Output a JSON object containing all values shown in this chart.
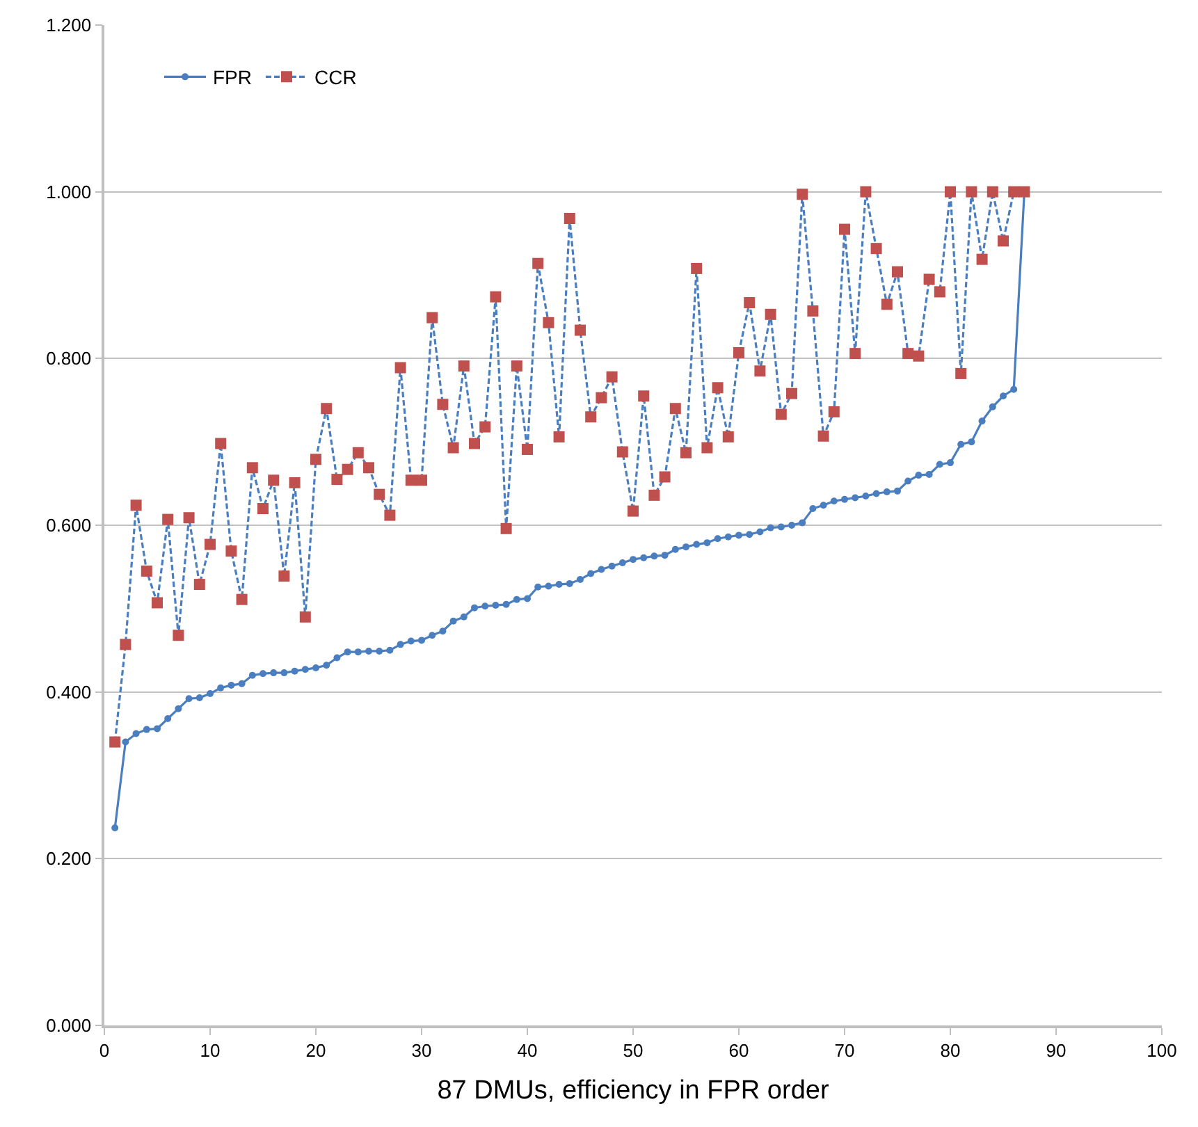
{
  "chart_data": {
    "type": "line",
    "xlabel": "87 DMUs, efficiency in FPR order",
    "x": [
      1,
      2,
      3,
      4,
      5,
      6,
      7,
      8,
      9,
      10,
      11,
      12,
      13,
      14,
      15,
      16,
      17,
      18,
      19,
      20,
      21,
      22,
      23,
      24,
      25,
      26,
      27,
      28,
      29,
      30,
      31,
      32,
      33,
      34,
      35,
      36,
      37,
      38,
      39,
      40,
      41,
      42,
      43,
      44,
      45,
      46,
      47,
      48,
      49,
      50,
      51,
      52,
      53,
      54,
      55,
      56,
      57,
      58,
      59,
      60,
      61,
      62,
      63,
      64,
      65,
      66,
      67,
      68,
      69,
      70,
      71,
      72,
      73,
      74,
      75,
      76,
      77,
      78,
      79,
      80,
      81,
      82,
      83,
      84,
      85,
      86,
      87
    ],
    "series": [
      {
        "name": "FPR",
        "color": "#4a7ebf",
        "marker": "circle",
        "line_style": "solid",
        "values": [
          0.237,
          0.34,
          0.35,
          0.355,
          0.356,
          0.368,
          0.38,
          0.392,
          0.393,
          0.398,
          0.405,
          0.408,
          0.41,
          0.42,
          0.422,
          0.423,
          0.423,
          0.425,
          0.427,
          0.429,
          0.432,
          0.441,
          0.448,
          0.448,
          0.449,
          0.449,
          0.45,
          0.457,
          0.461,
          0.462,
          0.468,
          0.473,
          0.485,
          0.49,
          0.501,
          0.503,
          0.504,
          0.505,
          0.511,
          0.512,
          0.526,
          0.527,
          0.529,
          0.53,
          0.535,
          0.542,
          0.547,
          0.551,
          0.555,
          0.559,
          0.561,
          0.563,
          0.564,
          0.571,
          0.574,
          0.577,
          0.579,
          0.584,
          0.586,
          0.588,
          0.589,
          0.592,
          0.597,
          0.598,
          0.6,
          0.603,
          0.62,
          0.624,
          0.629,
          0.631,
          0.633,
          0.635,
          0.638,
          0.64,
          0.641,
          0.653,
          0.66,
          0.661,
          0.673,
          0.675,
          0.697,
          0.7,
          0.725,
          0.742,
          0.755,
          0.763,
          1.0
        ]
      },
      {
        "name": "CCR",
        "color": "#4a7ebf",
        "colors": [
          "#c0504d",
          "#c0504d",
          "#c0504d",
          "#c0504d",
          "#c0504d",
          "#c0504d",
          "#c0504d",
          "#c0504d",
          "#c0504d",
          "#c0504d",
          "#c0504d",
          "#c0504d",
          "#c0504d",
          "#c0504d",
          "#c0504d",
          "#c0504d",
          "#c0504d",
          "#c0504d",
          "#c0504d",
          "#c0504d",
          "#c0504d",
          "#c0504d",
          "#c0504d",
          "#c0504d",
          "#c0504d",
          "#c0504d",
          "#c0504d",
          "#c0504d",
          "#c0504d",
          "#c0504d",
          "#c0504d",
          "#c0504d",
          "#c0504d",
          "#c0504d",
          "#c0504d",
          "#c0504d",
          "#c0504d",
          "#c0504d",
          "#c0504d",
          "#c0504d",
          "#c0504d",
          "#c0504d",
          "#c0504d",
          "#c0504d",
          "#c0504d",
          "#c0504d",
          "#c0504d",
          "#c0504d",
          "#c0504d",
          "#c0504d",
          "#c0504d",
          "#c0504d",
          "#c0504d",
          "#c0504d",
          "#c0504d",
          "#c0504d",
          "#c0504d",
          "#c0504d",
          "#c0504d",
          "#c0504d",
          "#c0504d",
          "#c0504d",
          "#c0504d",
          "#c0504d",
          "#c0504d",
          "#c0504d",
          "#c0504d",
          "#c0504d",
          "#c0504d",
          "#c0504d",
          "#c0504d",
          "#c0504d",
          "#c0504d",
          "#c0504d",
          "#c0504d",
          "#c0504d",
          "#c0504d",
          "#c0504d",
          "#c0504d",
          "#c0504d",
          "#c0504d",
          "#c0504d",
          "#c0504d",
          "#c0504d",
          "#c0504d",
          "#c0504d",
          "#c0504d"
        ],
        "marker": "square",
        "line_style": "dashed",
        "values": [
          0.34,
          0.457,
          0.624,
          0.545,
          0.507,
          0.607,
          0.468,
          0.609,
          0.529,
          0.577,
          0.698,
          0.569,
          0.511,
          0.669,
          0.62,
          0.654,
          0.539,
          0.651,
          0.49,
          0.679,
          0.74,
          0.655,
          0.667,
          0.687,
          0.669,
          0.637,
          0.612,
          0.789,
          0.654,
          0.654,
          0.849,
          0.745,
          0.693,
          0.791,
          0.698,
          0.718,
          0.874,
          0.596,
          0.791,
          0.691,
          0.914,
          0.843,
          0.706,
          0.968,
          0.834,
          0.73,
          0.753,
          0.778,
          0.688,
          0.617,
          0.755,
          0.636,
          0.658,
          0.74,
          0.687,
          0.908,
          0.693,
          0.765,
          0.706,
          0.807,
          0.867,
          0.785,
          0.853,
          0.733,
          0.758,
          0.997,
          0.857,
          0.707,
          0.736,
          0.955,
          0.806,
          1.0,
          0.932,
          0.865,
          0.904,
          0.806,
          0.803,
          0.895,
          0.88,
          1.0,
          0.782,
          1.0,
          0.919,
          1.0,
          0.941,
          1.0,
          1.0
        ]
      }
    ],
    "xlim": [
      0,
      100
    ],
    "xticks": [
      0,
      10,
      20,
      30,
      40,
      50,
      60,
      70,
      80,
      90,
      100
    ],
    "ylim": [
      0,
      1.2
    ],
    "yticks": [
      {
        "value": 0,
        "label": "0.000"
      },
      {
        "value": 0.2,
        "label": "0.200"
      },
      {
        "value": 0.4,
        "label": "0.400"
      },
      {
        "value": 0.6,
        "label": "0.600"
      },
      {
        "value": 0.8,
        "label": "0.800"
      },
      {
        "value": 1.0,
        "label": "1.000"
      },
      {
        "value": 1.2,
        "label": "1.200"
      }
    ],
    "grid": "y",
    "legend": "top left"
  }
}
